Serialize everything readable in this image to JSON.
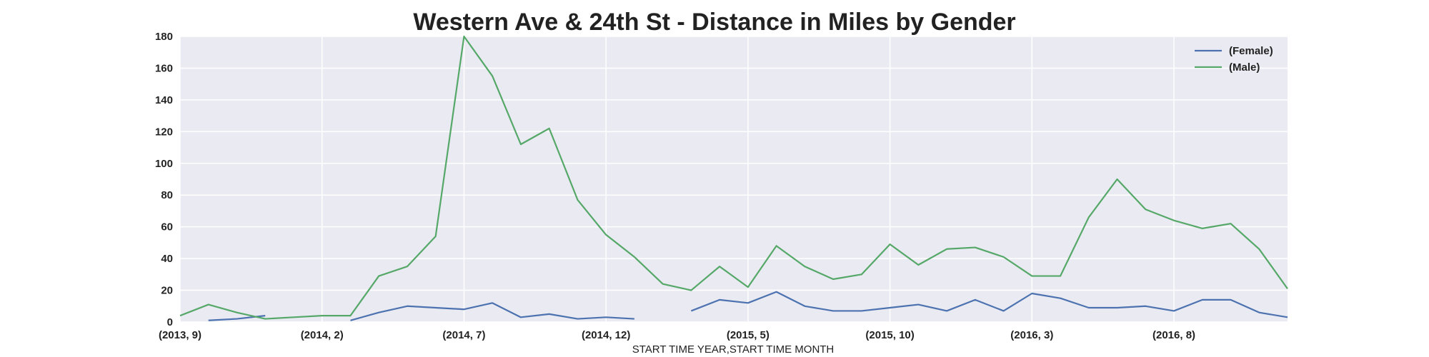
{
  "chart_data": {
    "type": "line",
    "title": "Western Ave & 24th St - Distance in Miles by Gender",
    "xlabel": "START TIME YEAR,START TIME MONTH",
    "ylabel": "",
    "ylim": [
      0,
      180
    ],
    "yticks": [
      0,
      20,
      40,
      60,
      80,
      100,
      120,
      140,
      160,
      180
    ],
    "x": [
      "(2013, 9)",
      "(2013, 10)",
      "(2013, 11)",
      "(2013, 12)",
      "(2014, 1)",
      "(2014, 2)",
      "(2014, 3)",
      "(2014, 4)",
      "(2014, 5)",
      "(2014, 6)",
      "(2014, 7)",
      "(2014, 8)",
      "(2014, 9)",
      "(2014, 10)",
      "(2014, 11)",
      "(2014, 12)",
      "(2015, 1)",
      "(2015, 2)",
      "(2015, 3)",
      "(2015, 4)",
      "(2015, 5)",
      "(2015, 6)",
      "(2015, 7)",
      "(2015, 8)",
      "(2015, 9)",
      "(2015, 10)",
      "(2015, 11)",
      "(2015, 12)",
      "(2016, 1)",
      "(2016, 2)",
      "(2016, 3)",
      "(2016, 4)",
      "(2016, 5)",
      "(2016, 6)",
      "(2016, 7)",
      "(2016, 8)",
      "(2016, 9)",
      "(2016, 10)",
      "(2016, 11)",
      "(2016, 12)"
    ],
    "xtick_labels": [
      "(2013, 9)",
      "(2014, 2)",
      "(2014, 7)",
      "(2014, 12)",
      "(2015, 5)",
      "(2015, 10)",
      "(2016, 3)",
      "(2016, 8)"
    ],
    "grid": true,
    "legend_position": "top-right",
    "series": [
      {
        "name": "(Female)",
        "color": "#4c72b0",
        "values": [
          null,
          1,
          2,
          4,
          null,
          null,
          1,
          6,
          10,
          9,
          8,
          12,
          3,
          5,
          2,
          3,
          2,
          null,
          7,
          14,
          12,
          19,
          10,
          7,
          7,
          9,
          11,
          7,
          14,
          7,
          18,
          15,
          9,
          9,
          10,
          7,
          14,
          14,
          6,
          3
        ]
      },
      {
        "name": "(Male)",
        "color": "#55a868",
        "values": [
          4,
          11,
          6,
          2,
          3,
          4,
          4,
          29,
          35,
          54,
          180,
          155,
          112,
          122,
          77,
          55,
          41,
          24,
          20,
          35,
          22,
          48,
          35,
          27,
          30,
          49,
          36,
          46,
          47,
          41,
          29,
          29,
          66,
          90,
          71,
          64,
          59,
          62,
          46,
          21
        ]
      }
    ]
  }
}
